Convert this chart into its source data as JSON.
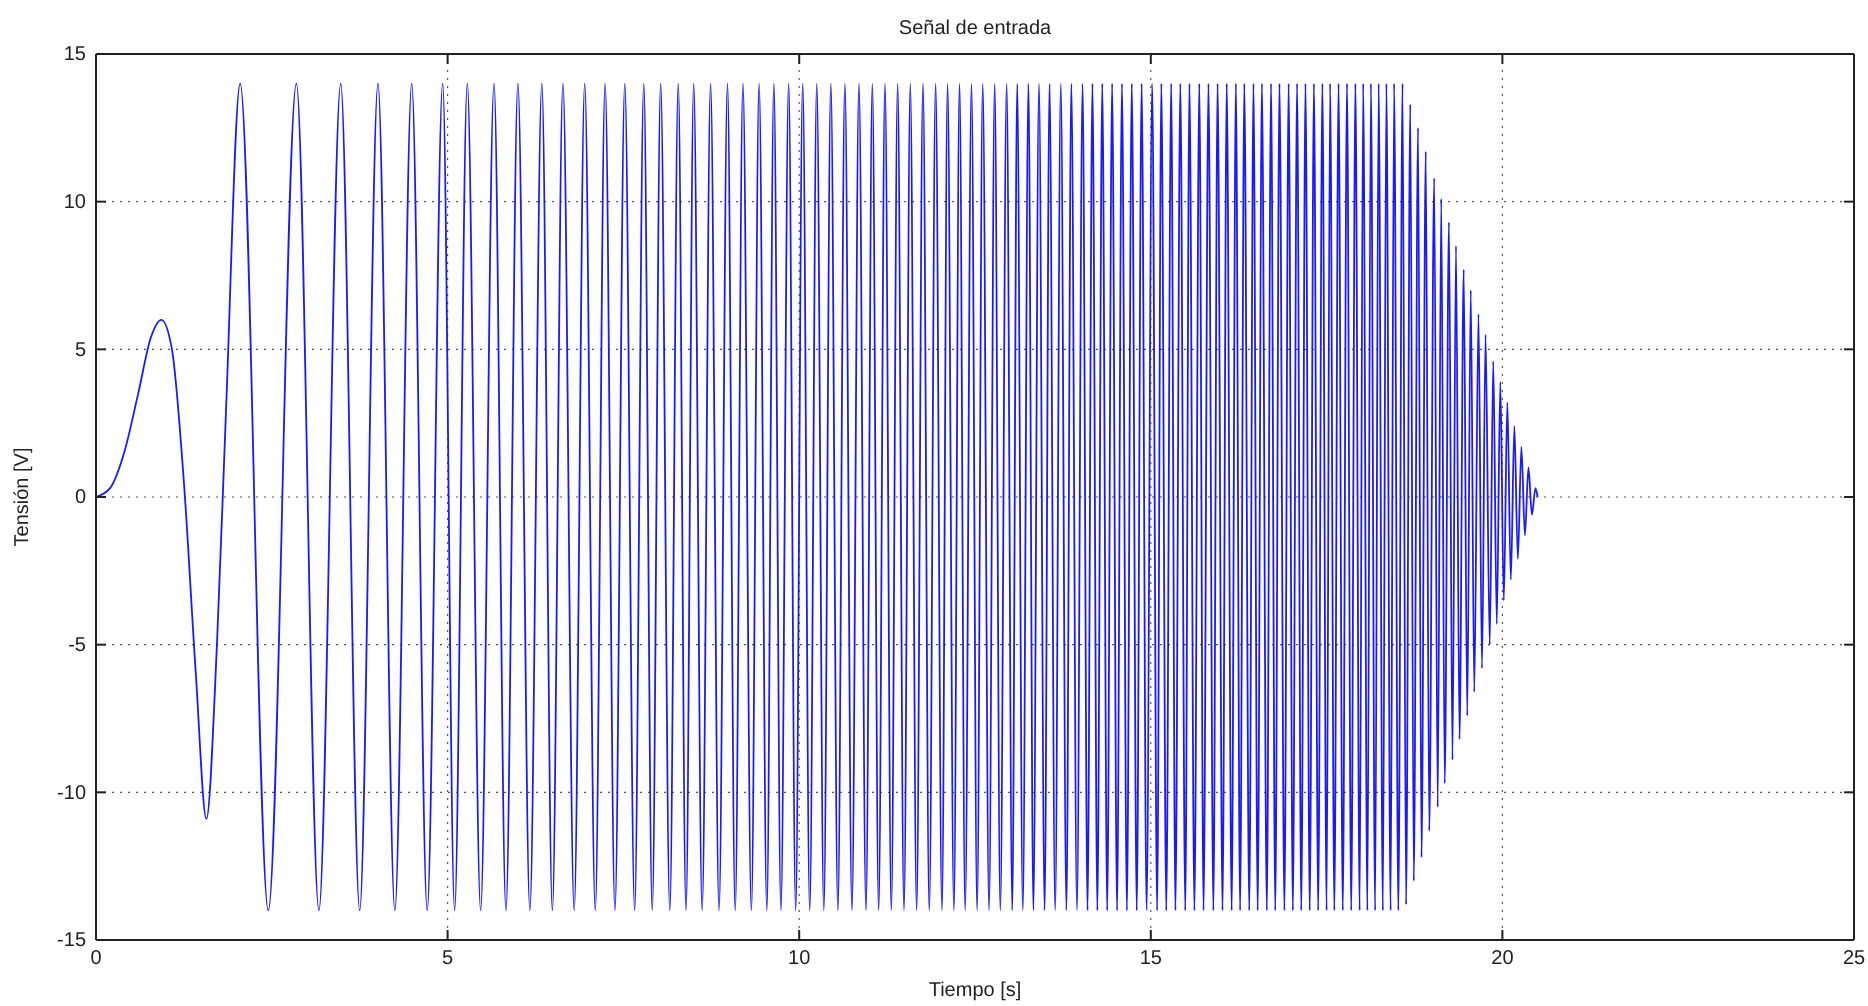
{
  "chart_data": {
    "type": "line",
    "title": "Señal de entrada",
    "xlabel": "Tiempo [s]",
    "ylabel": "Tensión [V]",
    "xlim": [
      0,
      25
    ],
    "ylim": [
      -15,
      15
    ],
    "xticks": [
      0,
      5,
      10,
      15,
      20,
      25
    ],
    "yticks": [
      -15,
      -10,
      -5,
      0,
      5,
      10,
      15
    ],
    "grid": true,
    "x": [
      0,
      0.2,
      0.4,
      0.6,
      0.78,
      0.93,
      1.08,
      1.25,
      1.42,
      1.57,
      1.72,
      1.85,
      2.05,
      2.45,
      2.85,
      3.17,
      3.48,
      3.75,
      4.01,
      4.25,
      4.49,
      4.71,
      4.93,
      5.1,
      5.28,
      5.47,
      5.66,
      5.83,
      6.0,
      6.17,
      6.34,
      6.49,
      6.64,
      6.8,
      6.95,
      7.1,
      7.24,
      7.38,
      7.52,
      7.66,
      7.79,
      7.91,
      8.03,
      8.16,
      8.28,
      8.39,
      8.5,
      8.62,
      8.74,
      8.86,
      8.98,
      9.09,
      9.2,
      9.32,
      9.43,
      9.54,
      9.64,
      9.74,
      9.85,
      9.95,
      10.05,
      10.15,
      10.25,
      10.35,
      10.45,
      10.55,
      10.65,
      10.75,
      10.85,
      10.95,
      11.04,
      11.13,
      11.22,
      11.31,
      11.4,
      11.49,
      11.58,
      11.67,
      11.76,
      11.85,
      11.94,
      12.03,
      12.11,
      12.2,
      12.28,
      12.36,
      12.45,
      12.53,
      12.61,
      12.7,
      12.78,
      12.86,
      12.95,
      13.03,
      13.1,
      13.18,
      13.26,
      13.33,
      13.41,
      13.49,
      13.56,
      13.64,
      13.72,
      13.8,
      13.87,
      13.95,
      14.03,
      14.1,
      14.17,
      14.24,
      14.31,
      14.38,
      14.45,
      14.52,
      14.59,
      14.66,
      14.73,
      14.8,
      14.87,
      14.94,
      15.02,
      15.09,
      15.15,
      15.22,
      15.29,
      15.35,
      15.42,
      15.49,
      15.55,
      15.62,
      15.69,
      15.75,
      15.82,
      15.89,
      15.95,
      16.02,
      16.08,
      16.15,
      16.21,
      16.27,
      16.33,
      16.4,
      16.46,
      16.52,
      16.58,
      16.65,
      16.71,
      16.77,
      16.83,
      16.9,
      16.96,
      17.02,
      17.08,
      17.14,
      17.2,
      17.26,
      17.32,
      17.38,
      17.44,
      17.5,
      17.55,
      17.61,
      17.67,
      17.73,
      17.79,
      17.85,
      17.91,
      17.97,
      18.02,
      18.08,
      18.13,
      18.19,
      18.24,
      18.3,
      18.35,
      18.41,
      18.46,
      18.52,
      18.58,
      18.63,
      18.69,
      18.74,
      18.8,
      18.85,
      18.91,
      18.96,
      19.03,
      19.08,
      19.13,
      19.18,
      19.24,
      19.29,
      19.34,
      19.39,
      19.45,
      19.5,
      19.55,
      19.6,
      19.66,
      19.71,
      19.76,
      19.82,
      19.87,
      19.92,
      19.97,
      20.02,
      20.07,
      20.12,
      20.17,
      20.22,
      20.27,
      20.32,
      20.37,
      20.42,
      20.47,
      20.5
    ],
    "series": [
      {
        "color": "#1a1aff",
        "values": [
          0,
          0.3,
          1.5,
          3.5,
          5.4,
          6,
          5,
          0.5,
          -6,
          -10.9,
          -5,
          3,
          14,
          -14,
          14,
          -14,
          14,
          -14,
          14,
          -14,
          14,
          -14,
          14,
          -14,
          14,
          -14,
          14,
          -14,
          14,
          -14,
          14,
          -14,
          14,
          -14,
          14,
          -14,
          14,
          -14,
          14,
          -14,
          14,
          -14,
          14,
          -14,
          14,
          -14,
          14,
          -14,
          14,
          -14,
          14,
          -14,
          14,
          -14,
          14,
          -14,
          14,
          -14,
          14,
          -14,
          14,
          -14,
          14,
          -14,
          14,
          -14,
          14,
          -14,
          14,
          -14,
          14,
          -14,
          14,
          -14,
          14,
          -14,
          14,
          -14,
          14,
          -14,
          14,
          -14,
          14,
          -14,
          14,
          -14,
          14,
          -14,
          14,
          -14,
          14,
          -14,
          14,
          -14,
          14,
          -14,
          14,
          -14,
          14,
          -14,
          14,
          -14,
          14,
          -14,
          14,
          -14,
          14,
          -14,
          14,
          -14,
          14,
          -14,
          14,
          -14,
          14,
          -14,
          14,
          -14,
          14,
          -14,
          14,
          -14,
          14,
          -14,
          14,
          -14,
          14,
          -14,
          14,
          -14,
          14,
          -14,
          14,
          -14,
          14,
          -14,
          14,
          -14,
          14,
          -14,
          14,
          -14,
          14,
          -14,
          14,
          -14,
          14,
          -14,
          14,
          -14,
          14,
          -14,
          14,
          -14,
          14,
          -14,
          14,
          -14,
          14,
          -14,
          14,
          -14,
          14,
          -14,
          14,
          -14,
          14,
          -14,
          14,
          -14,
          14,
          -14,
          14,
          -14,
          14,
          -14,
          14,
          -14,
          14,
          -13.8,
          13.3,
          -13,
          12.5,
          -12.2,
          11.7,
          -11.3,
          10.8,
          -10.5,
          10.1,
          -9.7,
          9.3,
          -8.9,
          8.5,
          -8.2,
          7.7,
          -7.4,
          7,
          -6.6,
          6.2,
          -5.8,
          5.5,
          -5,
          4.6,
          -4.3,
          3.9,
          -3.5,
          3.2,
          -2.8,
          2.4,
          -2.1,
          1.7,
          -1.3,
          1,
          -0.6,
          0.3,
          0
        ]
      }
    ]
  }
}
